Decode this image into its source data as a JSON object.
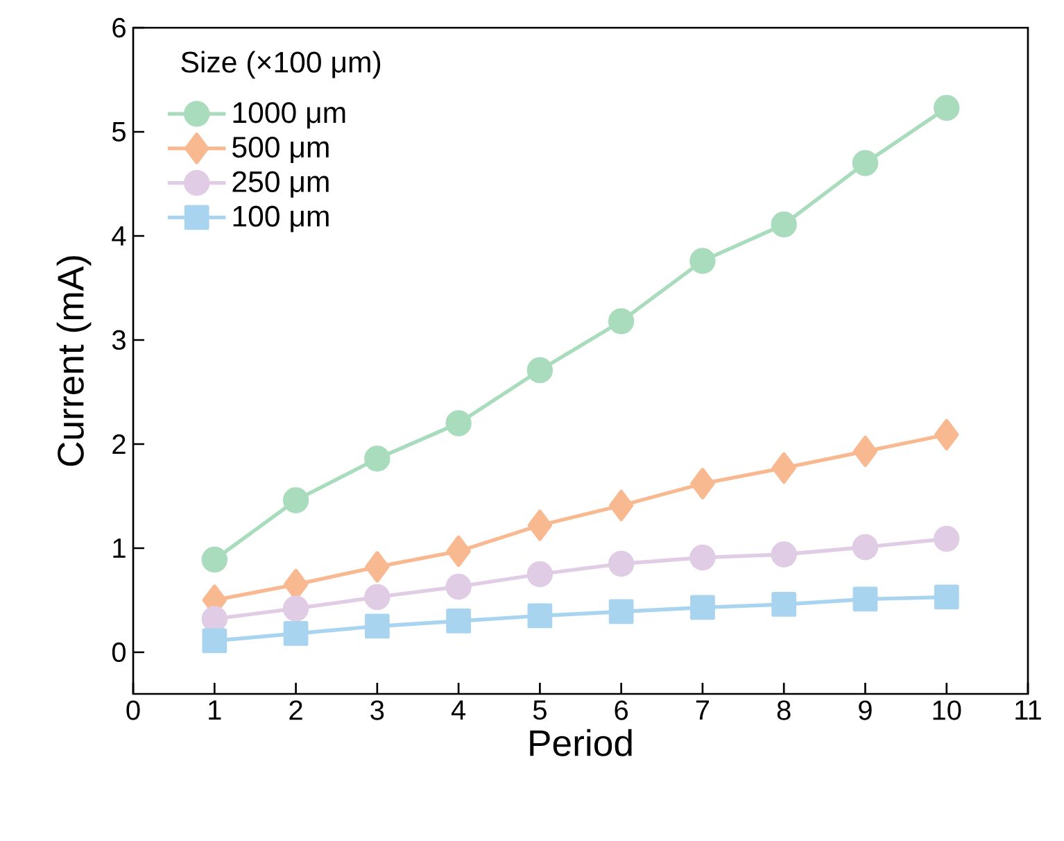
{
  "chart_data": {
    "type": "line",
    "xlabel": "Period",
    "ylabel": "Current (mA)",
    "legend_title": "Size  (×100 μm)",
    "x": [
      1,
      2,
      3,
      4,
      5,
      6,
      7,
      8,
      9,
      10
    ],
    "series": [
      {
        "name": "1000 μm",
        "color": "#a8dcbc",
        "marker": "circle",
        "values": [
          0.89,
          1.46,
          1.86,
          2.2,
          2.71,
          3.18,
          3.76,
          4.11,
          4.7,
          5.23
        ]
      },
      {
        "name": "500 μm",
        "color": "#f8b890",
        "marker": "diamond",
        "values": [
          0.5,
          0.65,
          0.82,
          0.97,
          1.22,
          1.41,
          1.62,
          1.77,
          1.93,
          2.09
        ]
      },
      {
        "name": "250 μm",
        "color": "#e0cce4",
        "marker": "circle",
        "values": [
          0.32,
          0.42,
          0.53,
          0.63,
          0.75,
          0.85,
          0.91,
          0.94,
          1.01,
          1.09
        ]
      },
      {
        "name": "100 μm",
        "color": "#a8d4f0",
        "marker": "square",
        "values": [
          0.11,
          0.18,
          0.25,
          0.3,
          0.35,
          0.39,
          0.43,
          0.46,
          0.51,
          0.53
        ]
      }
    ],
    "xlim": [
      0,
      11
    ],
    "xticks": [
      0,
      1,
      2,
      3,
      4,
      5,
      6,
      7,
      8,
      9,
      10,
      11
    ],
    "ylim": [
      -0.4,
      6
    ],
    "yticks": [
      0,
      1,
      2,
      3,
      4,
      5,
      6
    ],
    "grid": false,
    "legend": "top left",
    "line_style": "solid"
  }
}
